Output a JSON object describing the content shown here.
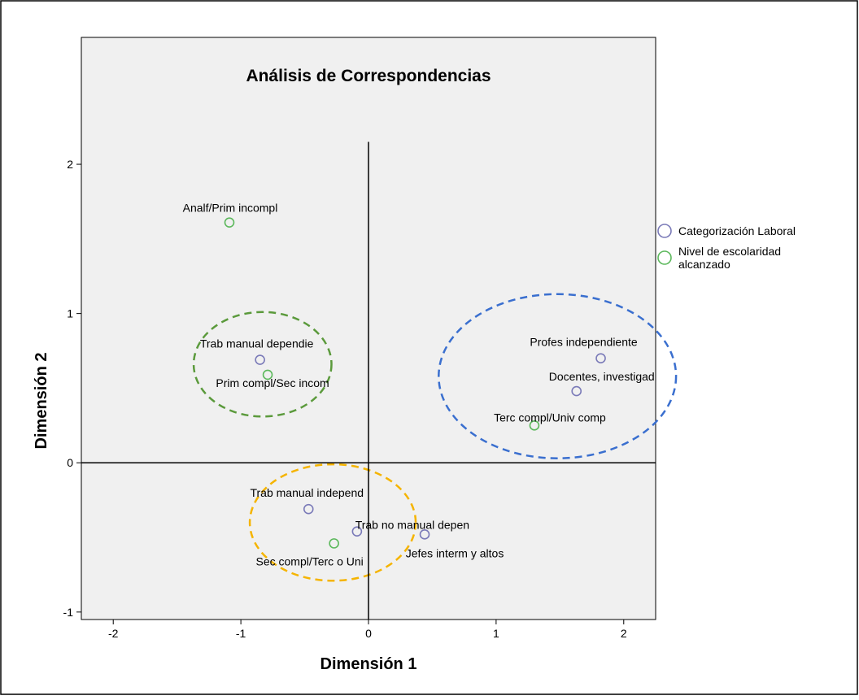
{
  "chart_data": {
    "type": "scatter",
    "title": "Análisis de Correspondencias",
    "xlabel": "Dimensión 1",
    "ylabel": "Dimensión 2",
    "xlim": [
      -2.25,
      2.25
    ],
    "ylim": [
      -1.05,
      2.85
    ],
    "xticks": [
      -2,
      -1,
      0,
      1,
      2
    ],
    "yticks": [
      -1,
      0,
      1,
      2
    ],
    "reference_lines": {
      "x": 0,
      "y": 0,
      "vline_top": 2.15
    },
    "legend_position": "right",
    "series": [
      {
        "name": "Categorización Laboral",
        "color": "#7a7ab8",
        "points": [
          {
            "label": "Trab manual dependie",
            "x": -0.85,
            "y": 0.69
          },
          {
            "label": "Profes independiente",
            "x": 1.82,
            "y": 0.7
          },
          {
            "label": "Docentes, investigad",
            "x": 1.63,
            "y": 0.48
          },
          {
            "label": "Trab manual independ",
            "x": -0.47,
            "y": -0.31
          },
          {
            "label": "Trab no manual depen",
            "x": -0.09,
            "y": -0.46
          },
          {
            "label": "Jefes interm y altos",
            "x": 0.44,
            "y": -0.48
          }
        ]
      },
      {
        "name": "Nivel de escolaridad alcanzado",
        "color": "#5cb85c",
        "points": [
          {
            "label": "Analf/Prim incompl",
            "x": -1.09,
            "y": 1.61
          },
          {
            "label": "Prim compl/Sec incom",
            "x": -0.79,
            "y": 0.59
          },
          {
            "label": "Terc compl/Univ comp",
            "x": 1.3,
            "y": 0.25
          },
          {
            "label": "Sec compl/Terc o Uni",
            "x": -0.27,
            "y": -0.54
          }
        ]
      }
    ],
    "highlight_circles": [
      {
        "color": "#5b9a3c",
        "cx": -0.83,
        "cy": 0.66,
        "rx": 0.54,
        "ry": 0.35
      },
      {
        "color": "#3a6fcf",
        "cx": 1.48,
        "cy": 0.58,
        "rx": 0.93,
        "ry": 0.55
      },
      {
        "color": "#f5b400",
        "cx": -0.28,
        "cy": -0.4,
        "rx": 0.65,
        "ry": 0.39
      }
    ]
  }
}
